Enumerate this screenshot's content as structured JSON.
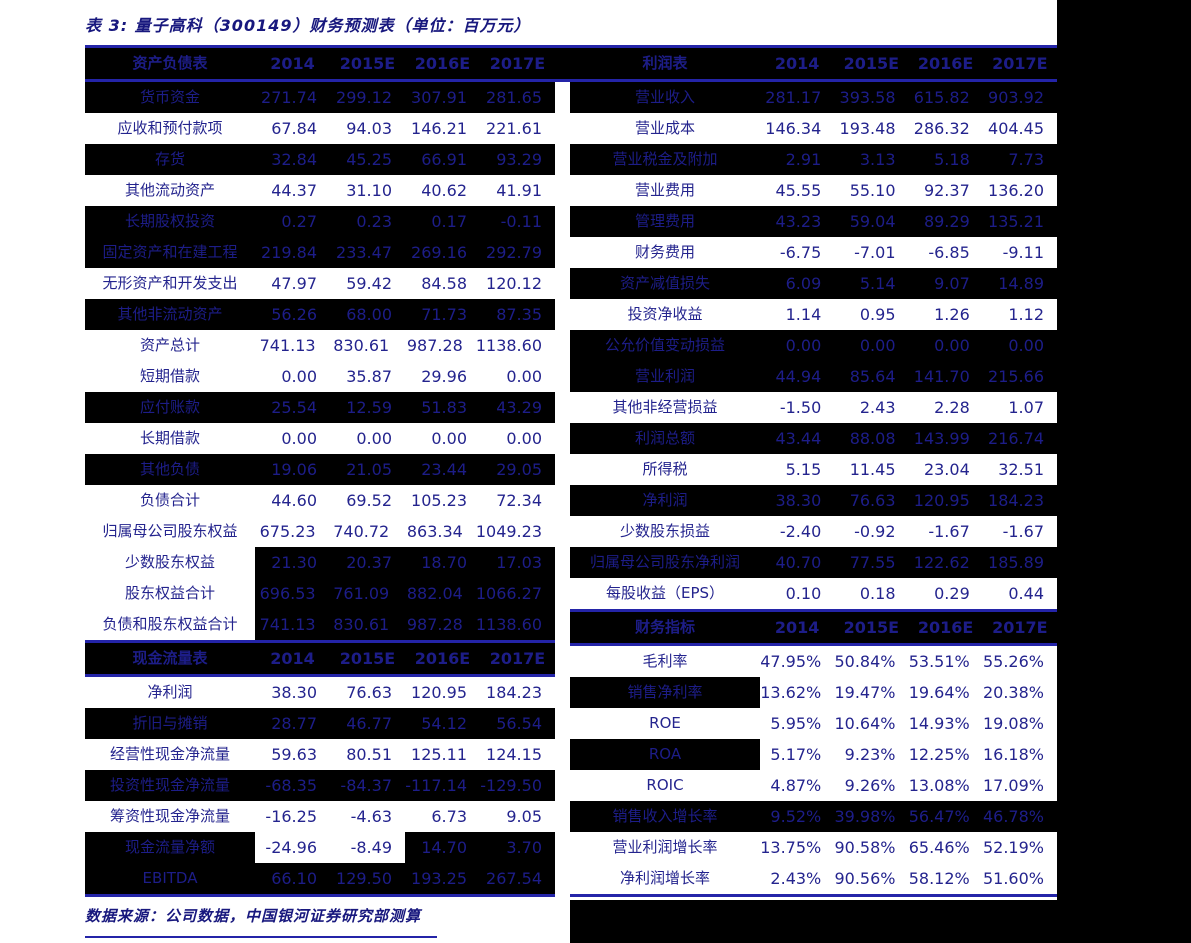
{
  "title": "表 3:  量子高科（300149）财务预测表（单位：百万元）",
  "footer_note": "数据来源：公司数据，中国银河证券研究部测算",
  "colors": {
    "line": "#2424a8",
    "text": "#24248e",
    "dark_row_bg": "#000000",
    "dark_row_text": "#1d1d88",
    "page_bg": "#ffffff"
  },
  "tables": [
    {
      "name": "balance-sheet-and-cashflow",
      "side": "lt",
      "sections": [
        {
          "title": "资产负债表",
          "columns": [
            "2014",
            "2015E",
            "2016E",
            "2017E"
          ],
          "rows": [
            {
              "label": "货币资金",
              "values": [
                "271.74",
                "299.12",
                "307.91",
                "281.65"
              ],
              "dark": [
                1,
                1,
                1,
                1,
                1
              ]
            },
            {
              "label": "应收和预付款项",
              "values": [
                "67.84",
                "94.03",
                "146.21",
                "221.61"
              ],
              "dark": [
                0,
                0,
                0,
                0,
                0
              ]
            },
            {
              "label": "存货",
              "values": [
                "32.84",
                "45.25",
                "66.91",
                "93.29"
              ],
              "dark": [
                1,
                1,
                1,
                1,
                1
              ]
            },
            {
              "label": "其他流动资产",
              "values": [
                "44.37",
                "31.10",
                "40.62",
                "41.91"
              ],
              "dark": [
                0,
                0,
                0,
                0,
                0
              ]
            },
            {
              "label": "长期股权投资",
              "values": [
                "0.27",
                "0.23",
                "0.17",
                "-0.11"
              ],
              "dark": [
                1,
                1,
                1,
                1,
                1
              ]
            },
            {
              "label": "固定资产和在建工程",
              "values": [
                "219.84",
                "233.47",
                "269.16",
                "292.79"
              ],
              "dark": [
                1,
                1,
                1,
                1,
                1
              ]
            },
            {
              "label": "无形资产和开发支出",
              "values": [
                "47.97",
                "59.42",
                "84.58",
                "120.12"
              ],
              "dark": [
                0,
                0,
                0,
                0,
                0
              ]
            },
            {
              "label": "其他非流动资产",
              "values": [
                "56.26",
                "68.00",
                "71.73",
                "87.35"
              ],
              "dark": [
                1,
                1,
                1,
                1,
                1
              ]
            },
            {
              "label": "资产总计",
              "values": [
                "741.13",
                "830.61",
                "987.28",
                "1138.60"
              ],
              "dark": [
                0,
                0,
                0,
                0,
                0
              ]
            },
            {
              "label": "短期借款",
              "values": [
                "0.00",
                "35.87",
                "29.96",
                "0.00"
              ],
              "dark": [
                0,
                0,
                0,
                0,
                0
              ]
            },
            {
              "label": "应付账款",
              "values": [
                "25.54",
                "12.59",
                "51.83",
                "43.29"
              ],
              "dark": [
                1,
                1,
                1,
                1,
                1
              ]
            },
            {
              "label": "长期借款",
              "values": [
                "0.00",
                "0.00",
                "0.00",
                "0.00"
              ],
              "dark": [
                0,
                0,
                0,
                0,
                0
              ]
            },
            {
              "label": "其他负债",
              "values": [
                "19.06",
                "21.05",
                "23.44",
                "29.05"
              ],
              "dark": [
                1,
                1,
                1,
                1,
                1
              ]
            },
            {
              "label": "负债合计",
              "values": [
                "44.60",
                "69.52",
                "105.23",
                "72.34"
              ],
              "dark": [
                0,
                0,
                0,
                0,
                0
              ]
            },
            {
              "label": "归属母公司股东权益",
              "values": [
                "675.23",
                "740.72",
                "863.34",
                "1049.23"
              ],
              "dark": [
                0,
                0,
                0,
                0,
                0
              ]
            },
            {
              "label": "少数股东权益",
              "values": [
                "21.30",
                "20.37",
                "18.70",
                "17.03"
              ],
              "dark": [
                0,
                1,
                1,
                1,
                1
              ]
            },
            {
              "label": "股东权益合计",
              "values": [
                "696.53",
                "761.09",
                "882.04",
                "1066.27"
              ],
              "dark": [
                0,
                1,
                1,
                1,
                1
              ]
            },
            {
              "label": "负债和股东权益合计",
              "values": [
                "741.13",
                "830.61",
                "987.28",
                "1138.60"
              ],
              "dark": [
                0,
                1,
                1,
                1,
                1
              ]
            }
          ]
        },
        {
          "title": "现金流量表",
          "columns": [
            "2014",
            "2015E",
            "2016E",
            "2017E"
          ],
          "rows": [
            {
              "label": "净利润",
              "values": [
                "38.30",
                "76.63",
                "120.95",
                "184.23"
              ],
              "dark": [
                0,
                0,
                0,
                0,
                0
              ]
            },
            {
              "label": "折旧与摊销",
              "values": [
                "28.77",
                "46.77",
                "54.12",
                "56.54"
              ],
              "dark": [
                1,
                1,
                1,
                1,
                1
              ]
            },
            {
              "label": "经营性现金净流量",
              "values": [
                "59.63",
                "80.51",
                "125.11",
                "124.15"
              ],
              "dark": [
                0,
                0,
                0,
                0,
                0
              ]
            },
            {
              "label": "投资性现金净流量",
              "values": [
                "-68.35",
                "-84.37",
                "-117.14",
                "-129.50"
              ],
              "dark": [
                1,
                1,
                1,
                1,
                1
              ]
            },
            {
              "label": "筹资性现金净流量",
              "values": [
                "-16.25",
                "-4.63",
                "6.73",
                "9.05"
              ],
              "dark": [
                0,
                0,
                0,
                0,
                0
              ]
            },
            {
              "label": "现金流量净额",
              "values": [
                "-24.96",
                "-8.49",
                "14.70",
                "3.70"
              ],
              "dark": [
                1,
                0,
                0,
                1,
                1
              ]
            },
            {
              "label": "EBITDA",
              "values": [
                "66.10",
                "129.50",
                "193.25",
                "267.54"
              ],
              "dark": [
                1,
                1,
                1,
                1,
                1
              ]
            }
          ]
        }
      ]
    },
    {
      "name": "income-statement-and-ratios",
      "side": "rt",
      "sections": [
        {
          "title": "利润表",
          "columns": [
            "2014",
            "2015E",
            "2016E",
            "2017E"
          ],
          "rows": [
            {
              "label": "营业收入",
              "values": [
                "281.17",
                "393.58",
                "615.82",
                "903.92"
              ],
              "dark": [
                1,
                1,
                1,
                1,
                1
              ]
            },
            {
              "label": "营业成本",
              "values": [
                "146.34",
                "193.48",
                "286.32",
                "404.45"
              ],
              "dark": [
                0,
                0,
                0,
                0,
                0
              ]
            },
            {
              "label": "营业税金及附加",
              "values": [
                "2.91",
                "3.13",
                "5.18",
                "7.73"
              ],
              "dark": [
                1,
                1,
                1,
                1,
                1
              ]
            },
            {
              "label": "营业费用",
              "values": [
                "45.55",
                "55.10",
                "92.37",
                "136.20"
              ],
              "dark": [
                0,
                0,
                0,
                0,
                0
              ]
            },
            {
              "label": "管理费用",
              "values": [
                "43.23",
                "59.04",
                "89.29",
                "135.21"
              ],
              "dark": [
                1,
                1,
                1,
                1,
                1
              ]
            },
            {
              "label": "财务费用",
              "values": [
                "-6.75",
                "-7.01",
                "-6.85",
                "-9.11"
              ],
              "dark": [
                0,
                0,
                0,
                0,
                0
              ]
            },
            {
              "label": "资产减值损失",
              "values": [
                "6.09",
                "5.14",
                "9.07",
                "14.89"
              ],
              "dark": [
                1,
                1,
                1,
                1,
                1
              ]
            },
            {
              "label": "投资净收益",
              "values": [
                "1.14",
                "0.95",
                "1.26",
                "1.12"
              ],
              "dark": [
                0,
                0,
                0,
                0,
                0
              ]
            },
            {
              "label": "公允价值变动损益",
              "values": [
                "0.00",
                "0.00",
                "0.00",
                "0.00"
              ],
              "dark": [
                1,
                1,
                1,
                1,
                1
              ]
            },
            {
              "label": "营业利润",
              "values": [
                "44.94",
                "85.64",
                "141.70",
                "215.66"
              ],
              "dark": [
                1,
                1,
                1,
                1,
                1
              ]
            },
            {
              "label": "其他非经营损益",
              "values": [
                "-1.50",
                "2.43",
                "2.28",
                "1.07"
              ],
              "dark": [
                0,
                0,
                0,
                0,
                0
              ]
            },
            {
              "label": "利润总额",
              "values": [
                "43.44",
                "88.08",
                "143.99",
                "216.74"
              ],
              "dark": [
                1,
                1,
                1,
                1,
                1
              ]
            },
            {
              "label": "所得税",
              "values": [
                "5.15",
                "11.45",
                "23.04",
                "32.51"
              ],
              "dark": [
                0,
                0,
                0,
                0,
                0
              ]
            },
            {
              "label": "净利润",
              "values": [
                "38.30",
                "76.63",
                "120.95",
                "184.23"
              ],
              "dark": [
                1,
                1,
                1,
                1,
                1
              ]
            },
            {
              "label": "少数股东损益",
              "values": [
                "-2.40",
                "-0.92",
                "-1.67",
                "-1.67"
              ],
              "dark": [
                0,
                0,
                0,
                0,
                0
              ]
            },
            {
              "label": "归属母公司股东净利润",
              "values": [
                "40.70",
                "77.55",
                "122.62",
                "185.89"
              ],
              "dark": [
                1,
                1,
                1,
                1,
                1
              ]
            },
            {
              "label": "每股收益（EPS）",
              "values": [
                "0.10",
                "0.18",
                "0.29",
                "0.44"
              ],
              "dark": [
                0,
                0,
                0,
                0,
                0
              ]
            }
          ]
        },
        {
          "title": "财务指标",
          "columns": [
            "2014",
            "2015E",
            "2016E",
            "2017E"
          ],
          "rows": [
            {
              "label": "毛利率",
              "values": [
                "47.95%",
                "50.84%",
                "53.51%",
                "55.26%"
              ],
              "dark": [
                0,
                0,
                0,
                0,
                0
              ]
            },
            {
              "label": "销售净利率",
              "values": [
                "13.62%",
                "19.47%",
                "19.64%",
                "20.38%"
              ],
              "dark": [
                1,
                0,
                0,
                0,
                0
              ]
            },
            {
              "label": "ROE",
              "values": [
                "5.95%",
                "10.64%",
                "14.93%",
                "19.08%"
              ],
              "dark": [
                0,
                0,
                0,
                0,
                0
              ]
            },
            {
              "label": "ROA",
              "values": [
                "5.17%",
                "9.23%",
                "12.25%",
                "16.18%"
              ],
              "dark": [
                1,
                0,
                0,
                0,
                0
              ]
            },
            {
              "label": "ROIC",
              "values": [
                "4.87%",
                "9.26%",
                "13.08%",
                "17.09%"
              ],
              "dark": [
                0,
                0,
                0,
                0,
                0
              ]
            },
            {
              "label": "销售收入增长率",
              "values": [
                "9.52%",
                "39.98%",
                "56.47%",
                "46.78%"
              ],
              "dark": [
                1,
                1,
                1,
                1,
                1
              ]
            },
            {
              "label": "营业利润增长率",
              "values": [
                "13.75%",
                "90.58%",
                "65.46%",
                "52.19%"
              ],
              "dark": [
                0,
                0,
                0,
                0,
                0
              ]
            },
            {
              "label": "净利润增长率",
              "values": [
                "2.43%",
                "90.56%",
                "58.12%",
                "51.60%"
              ],
              "dark": [
                0,
                0,
                0,
                0,
                0
              ]
            }
          ]
        }
      ]
    }
  ]
}
